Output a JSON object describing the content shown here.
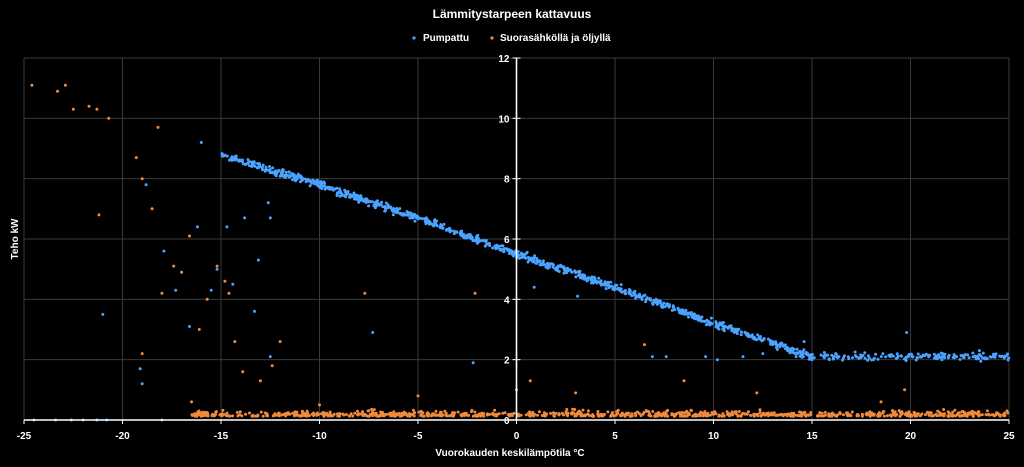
{
  "chart_data": {
    "type": "scatter",
    "title": "Lämmitystarpeen kattavuus",
    "xlabel": "Vuorokauden keskilämpötila °C",
    "ylabel": "Teho kW",
    "xlim": [
      -25,
      25
    ],
    "ylim": [
      0,
      12
    ],
    "xticks": [
      -25,
      -20,
      -15,
      -10,
      -5,
      0,
      5,
      10,
      15,
      20,
      25
    ],
    "yticks": [
      0,
      2,
      4,
      6,
      8,
      10,
      12
    ],
    "grid": true,
    "legend": "top-center",
    "series": [
      {
        "name": "Pumpattu",
        "color": "#4aa3ff",
        "points": [
          [
            -24.5,
            0.0
          ],
          [
            -23.4,
            0.0
          ],
          [
            -22.6,
            0.0
          ],
          [
            -22.0,
            0.0
          ],
          [
            -21.3,
            0.0
          ],
          [
            -20.8,
            0.0
          ],
          [
            -18.0,
            0.0
          ],
          [
            -21.0,
            3.5
          ],
          [
            -19.1,
            1.7
          ],
          [
            -19.0,
            1.2
          ],
          [
            -18.8,
            7.8
          ],
          [
            -17.9,
            5.6
          ],
          [
            -17.3,
            4.3
          ],
          [
            -16.6,
            3.1
          ],
          [
            -16.2,
            6.4
          ],
          [
            -16.0,
            9.2
          ],
          [
            -15.5,
            4.3
          ],
          [
            -15.2,
            5.0
          ],
          [
            -14.7,
            6.4
          ],
          [
            -14.4,
            4.5
          ],
          [
            -13.8,
            6.7
          ],
          [
            -13.3,
            3.6
          ],
          [
            -13.1,
            5.3
          ],
          [
            -12.6,
            7.2
          ],
          [
            -12.5,
            6.7
          ],
          [
            -12.5,
            2.1
          ],
          [
            -7.3,
            2.9
          ],
          [
            -2.2,
            1.9
          ],
          [
            0.9,
            4.4
          ],
          [
            3.1,
            4.1
          ],
          [
            6.9,
            2.1
          ],
          [
            7.6,
            2.1
          ],
          [
            9.6,
            2.1
          ],
          [
            10.2,
            2.0
          ],
          [
            11.5,
            2.1
          ],
          [
            12.5,
            2.2
          ],
          [
            14.2,
            2.1
          ],
          [
            14.6,
            2.6
          ],
          [
            15.0,
            2.0
          ],
          [
            16.2,
            2.2
          ],
          [
            17.5,
            2.1
          ],
          [
            18.6,
            2.2
          ],
          [
            19.8,
            2.9
          ],
          [
            20.5,
            2.1
          ],
          [
            21.6,
            2.0
          ],
          [
            22.7,
            2.1
          ],
          [
            23.5,
            2.3
          ],
          [
            24.6,
            2.1
          ]
        ],
        "trend": [
          [
            -15.0,
            8.8
          ],
          [
            -10.0,
            7.8
          ],
          [
            -5.0,
            6.7
          ],
          [
            0.0,
            5.5
          ],
          [
            5.0,
            4.4
          ],
          [
            10.0,
            3.2
          ],
          [
            15.0,
            2.1
          ],
          [
            25.0,
            2.1
          ]
        ]
      },
      {
        "name": "Suorasähköllä ja öljyllä",
        "color": "#f08a3c",
        "points": [
          [
            -24.6,
            11.1
          ],
          [
            -23.3,
            10.9
          ],
          [
            -22.9,
            11.1
          ],
          [
            -22.5,
            10.3
          ],
          [
            -21.7,
            10.4
          ],
          [
            -21.3,
            10.3
          ],
          [
            -20.7,
            10.0
          ],
          [
            -21.2,
            6.8
          ],
          [
            -18.2,
            9.7
          ],
          [
            -19.3,
            8.7
          ],
          [
            -19.0,
            8.0
          ],
          [
            -18.5,
            7.0
          ],
          [
            -18.0,
            4.2
          ],
          [
            -17.4,
            5.1
          ],
          [
            -17.0,
            4.9
          ],
          [
            -16.6,
            6.1
          ],
          [
            -16.1,
            3.0
          ],
          [
            -15.7,
            4.0
          ],
          [
            -15.2,
            5.1
          ],
          [
            -14.8,
            4.6
          ],
          [
            -14.6,
            4.2
          ],
          [
            -14.3,
            2.6
          ],
          [
            -13.9,
            1.6
          ],
          [
            -13.0,
            1.3
          ],
          [
            -12.4,
            1.8
          ],
          [
            -12.0,
            2.6
          ],
          [
            -7.7,
            4.2
          ],
          [
            -2.1,
            4.2
          ],
          [
            6.5,
            2.5
          ],
          [
            8.5,
            1.3
          ],
          [
            19.7,
            1.0
          ],
          [
            -19.0,
            2.2
          ],
          [
            -16.5,
            0.6
          ],
          [
            -10.0,
            0.5
          ],
          [
            -5.0,
            0.8
          ],
          [
            0.0,
            1.0
          ],
          [
            0.7,
            1.3
          ],
          [
            3.0,
            0.9
          ],
          [
            12.2,
            0.9
          ],
          [
            18.5,
            0.6
          ]
        ],
        "band": {
          "x": [
            -16.5,
            25.0
          ],
          "center": 0.2,
          "spread": 0.25
        }
      }
    ]
  }
}
